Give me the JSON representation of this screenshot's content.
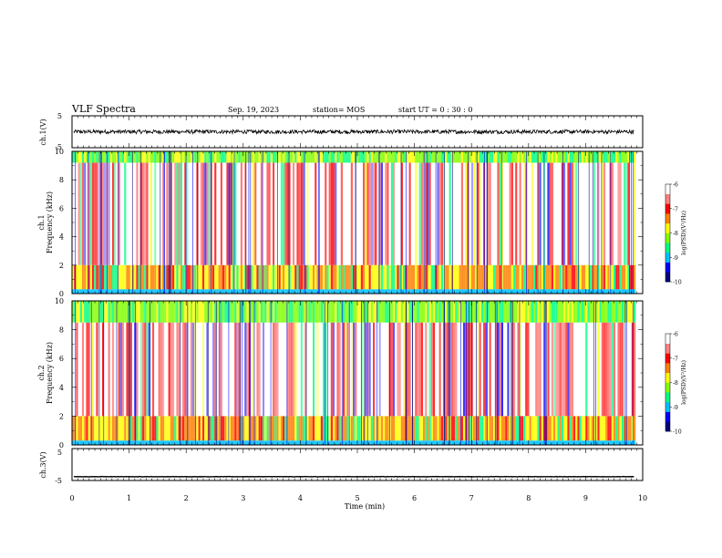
{
  "header": {
    "title": "VLF Spectra",
    "date": "Sep. 19, 2023",
    "station": "station= MOS",
    "start_ut": "start  UT =  0 : 30 : 0"
  },
  "chart_data": [
    {
      "type": "line",
      "panel": "ch1-waveform",
      "ylabel": "ch.1(V)",
      "ylim": [
        -5,
        5
      ],
      "y_ticks": [
        "5",
        "-5"
      ],
      "xlim": [
        0,
        10
      ],
      "series": [
        {
          "values_note": "",
          "level": 0,
          "noise_amplitude": 0.6
        }
      ]
    },
    {
      "type": "heatmap",
      "panel": "ch1-spectrogram",
      "ylabel": "ch.1 Frequency (kHz)",
      "ylabel_line1": "ch.1",
      "ylabel_line2": "Frequency (kHz)",
      "ylim": [
        0,
        10
      ],
      "y_ticks": [
        "0",
        "2",
        "4",
        "6",
        "8",
        "10"
      ],
      "xlim": [
        0,
        10
      ],
      "bands_khz": [
        0.3,
        2,
        9.2,
        10
      ],
      "colorbar": {
        "label": "log(PSD)(V²/Hz)",
        "range": [
          -10,
          -6
        ],
        "ticks": [
          "-6",
          "-7",
          "-8",
          "-9",
          "-10"
        ]
      }
    },
    {
      "type": "heatmap",
      "panel": "ch2-spectrogram",
      "ylabel": "ch.2 Frequency (kHz)",
      "ylabel_line1": "ch.2",
      "ylabel_line2": "Frequency (kHz)",
      "ylim": [
        0,
        10
      ],
      "y_ticks": [
        "0",
        "2",
        "4",
        "6",
        "8",
        "10"
      ],
      "xlim": [
        0,
        10
      ],
      "bands_khz": [
        0.3,
        2,
        8.5,
        10
      ],
      "colorbar": {
        "label": "log(PSD)(V²/Hz)",
        "range": [
          -10,
          -6
        ],
        "ticks": [
          "-6",
          "-7",
          "-8",
          "-9",
          "-10"
        ]
      }
    },
    {
      "type": "line",
      "panel": "ch3-waveform",
      "ylabel": "ch.3(V)",
      "ylim": [
        -5,
        5
      ],
      "y_ticks": [
        "5",
        "-5"
      ],
      "xlim": [
        0,
        10
      ],
      "series": [
        {
          "level": -3.8,
          "noise_amplitude": 0.05
        }
      ]
    }
  ],
  "x_axis": {
    "label": "Time  (min)",
    "ticks": [
      "0",
      "1",
      "2",
      "3",
      "4",
      "5",
      "6",
      "7",
      "8",
      "9",
      "10"
    ],
    "data_end_min": 9.85
  },
  "colors": [
    "#000080",
    "#0000ff",
    "#00c0ff",
    "#00ff80",
    "#80ff00",
    "#ffff00",
    "#ff8000",
    "#ff0000",
    "#ffffff"
  ]
}
